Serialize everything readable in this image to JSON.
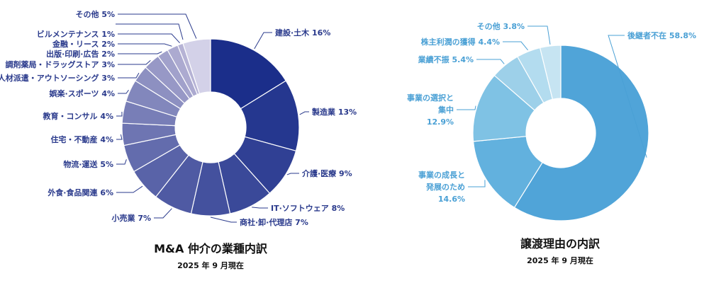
{
  "chart_data": [
    {
      "type": "pie",
      "donut": true,
      "title": "M&A 仲介の業種内訳",
      "subtitle": "2025 年 9 月現在",
      "unit": "%",
      "slices": [
        {
          "label": "建設·土木",
          "value": 16
        },
        {
          "label": "製造業",
          "value": 13
        },
        {
          "label": "介護·医療",
          "value": 9
        },
        {
          "label": "IT·ソフトウェア",
          "value": 8
        },
        {
          "label": "商社·卸·代理店",
          "value": 7
        },
        {
          "label": "小売業",
          "value": 7
        },
        {
          "label": "外食·食品関連",
          "value": 6
        },
        {
          "label": "物流·運送",
          "value": 5
        },
        {
          "label": "住宅・不動産",
          "value": 4
        },
        {
          "label": "教育・コンサル",
          "value": 4
        },
        {
          "label": "娯楽·スポーツ",
          "value": 4
        },
        {
          "label": "人材派遣・アウトソーシング",
          "value": 3
        },
        {
          "label": "調剤薬局・ドラッグストア",
          "value": 3
        },
        {
          "label": "出版·印刷·広告",
          "value": 2
        },
        {
          "label": "金融・リース",
          "value": 2
        },
        {
          "label": "ビルメンテナンス",
          "value": 1
        },
        {
          "label": "その他",
          "value": 5
        }
      ],
      "colors": {
        "start": "#1b2e8a",
        "end": "#b6b3d5",
        "other": "#d3d1e8",
        "text": "#2a3a8c"
      }
    },
    {
      "type": "pie",
      "donut": true,
      "title": "譲渡理由の内訳",
      "subtitle": "2025 年 9 月現在",
      "unit": "%",
      "slices": [
        {
          "label": "後継者不在",
          "value": 58.8,
          "color": "#50a4d8"
        },
        {
          "label": "事業の成長と発展のため",
          "lines": [
            "事業の成長と",
            "発展のため"
          ],
          "value": 14.6,
          "color": "#62b1de"
        },
        {
          "label": "事業の選択と集中",
          "lines": [
            "事業の選択と",
            "集中"
          ],
          "value": 12.9,
          "color": "#7fc2e4"
        },
        {
          "label": "業績不振",
          "value": 5.4,
          "color": "#9dd0e9"
        },
        {
          "label": "株主利潤の獲得",
          "value": 4.4,
          "color": "#b3dcef"
        },
        {
          "label": "その他",
          "value": 3.8,
          "color": "#c6e4f2"
        }
      ],
      "colors": {
        "text": "#4aa0d5"
      }
    }
  ]
}
